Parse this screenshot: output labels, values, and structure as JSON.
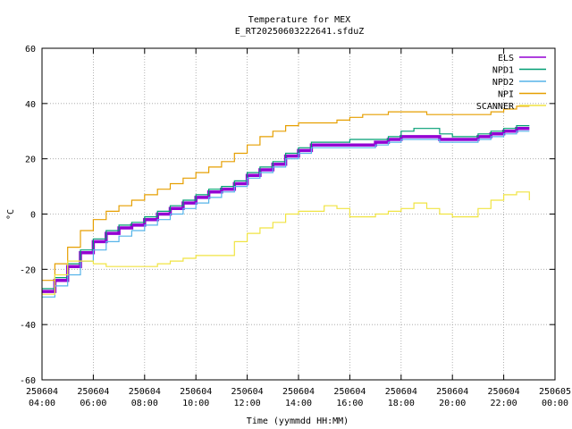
{
  "chart_data": {
    "type": "line",
    "title": "Temperature for MEX",
    "subtitle": "E_RT20250603222641.sfduZ",
    "xlabel": "Time (yymmdd HH:MM)",
    "ylabel": "°C",
    "ylim": [
      -60,
      60
    ],
    "yticks": [
      "60",
      "40",
      "20",
      "0",
      "-20",
      "-40",
      "-60"
    ],
    "xlim": [
      "250604 04:00",
      "250605 00:00"
    ],
    "xticks": [
      {
        "date": "250604",
        "time": "04:00"
      },
      {
        "date": "250604",
        "time": "06:00"
      },
      {
        "date": "250604",
        "time": "08:00"
      },
      {
        "date": "250604",
        "time": "10:00"
      },
      {
        "date": "250604",
        "time": "12:00"
      },
      {
        "date": "250604",
        "time": "14:00"
      },
      {
        "date": "250604",
        "time": "16:00"
      },
      {
        "date": "250604",
        "time": "18:00"
      },
      {
        "date": "250604",
        "time": "20:00"
      },
      {
        "date": "250604",
        "time": "22:00"
      },
      {
        "date": "250605",
        "time": "00:00"
      }
    ],
    "grid": true,
    "legend_position": "top-right",
    "series": [
      {
        "name": "ELS",
        "color": "#9400d3",
        "x": [
          "04:00",
          "04:30",
          "05:00",
          "05:30",
          "06:00",
          "06:30",
          "07:00",
          "07:30",
          "08:00",
          "08:30",
          "09:00",
          "09:30",
          "10:00",
          "10:30",
          "11:00",
          "11:30",
          "12:00",
          "12:30",
          "13:00",
          "13:30",
          "14:00",
          "14:30",
          "15:00",
          "15:30",
          "16:00",
          "16:30",
          "17:00",
          "17:30",
          "18:00",
          "18:30",
          "19:00",
          "19:30",
          "20:00",
          "20:30",
          "21:00",
          "21:30",
          "22:00",
          "22:30",
          "23:00"
        ],
        "values": [
          -28,
          -24,
          -19,
          -14,
          -10,
          -7,
          -5,
          -4,
          -2,
          0,
          2,
          4,
          6,
          8,
          9,
          11,
          14,
          16,
          18,
          21,
          23,
          25,
          25,
          25,
          25,
          25,
          26,
          27,
          28,
          28,
          28,
          27,
          27,
          27,
          28,
          29,
          30,
          31,
          31
        ]
      },
      {
        "name": "NPD1",
        "color": "#009e73",
        "x": [
          "04:00",
          "04:30",
          "05:00",
          "05:30",
          "06:00",
          "06:30",
          "07:00",
          "07:30",
          "08:00",
          "08:30",
          "09:00",
          "09:30",
          "10:00",
          "10:30",
          "11:00",
          "11:30",
          "12:00",
          "12:30",
          "13:00",
          "13:30",
          "14:00",
          "14:30",
          "15:00",
          "15:30",
          "16:00",
          "16:30",
          "17:00",
          "17:30",
          "18:00",
          "18:30",
          "19:00",
          "19:30",
          "20:00",
          "20:30",
          "21:00",
          "21:30",
          "22:00",
          "22:30",
          "23:00"
        ],
        "values": [
          -27,
          -23,
          -18,
          -13,
          -9,
          -6,
          -4,
          -3,
          -1,
          1,
          3,
          5,
          7,
          9,
          10,
          12,
          15,
          17,
          19,
          22,
          24,
          26,
          26,
          26,
          27,
          27,
          27,
          28,
          30,
          31,
          31,
          29,
          28,
          28,
          29,
          30,
          31,
          32,
          32
        ]
      },
      {
        "name": "NPD2",
        "color": "#56b4e9",
        "x": [
          "04:00",
          "04:30",
          "05:00",
          "05:30",
          "06:00",
          "06:30",
          "07:00",
          "07:30",
          "08:00",
          "08:30",
          "09:00",
          "09:30",
          "10:00",
          "10:30",
          "11:00",
          "11:30",
          "12:00",
          "12:30",
          "13:00",
          "13:30",
          "14:00",
          "14:30",
          "15:00",
          "15:30",
          "16:00",
          "16:30",
          "17:00",
          "17:30",
          "18:00",
          "18:30",
          "19:00",
          "19:30",
          "20:00",
          "20:30",
          "21:00",
          "21:30",
          "22:00",
          "22:30",
          "23:00"
        ],
        "values": [
          -30,
          -26,
          -22,
          -17,
          -13,
          -10,
          -8,
          -6,
          -4,
          -2,
          0,
          2,
          4,
          6,
          8,
          10,
          13,
          15,
          17,
          20,
          22,
          24,
          24,
          24,
          24,
          24,
          25,
          26,
          27,
          27,
          27,
          26,
          26,
          26,
          27,
          28,
          29,
          30,
          30
        ]
      },
      {
        "name": "NPI",
        "color": "#e69f00",
        "x": [
          "04:00",
          "04:30",
          "05:00",
          "05:30",
          "06:00",
          "06:30",
          "07:00",
          "07:30",
          "08:00",
          "08:30",
          "09:00",
          "09:30",
          "10:00",
          "10:30",
          "11:00",
          "11:30",
          "12:00",
          "12:30",
          "13:00",
          "13:30",
          "14:00",
          "14:30",
          "15:00",
          "15:30",
          "16:00",
          "16:30",
          "17:00",
          "17:30",
          "18:00",
          "18:30",
          "19:00",
          "19:30",
          "20:00",
          "20:30",
          "21:00",
          "21:30",
          "22:00",
          "22:30",
          "23:00"
        ],
        "values": [
          -24,
          -18,
          -12,
          -6,
          -2,
          1,
          3,
          5,
          7,
          9,
          11,
          13,
          15,
          17,
          19,
          22,
          25,
          28,
          30,
          32,
          33,
          33,
          33,
          34,
          35,
          36,
          36,
          37,
          37,
          37,
          36,
          36,
          36,
          36,
          36,
          37,
          38,
          39,
          39
        ]
      },
      {
        "name": "SCANNER",
        "color": "#f0e442",
        "x": [
          "04:00",
          "04:30",
          "05:00",
          "05:30",
          "06:00",
          "06:30",
          "07:00",
          "07:30",
          "08:00",
          "08:30",
          "09:00",
          "09:30",
          "10:00",
          "10:30",
          "11:00",
          "11:30",
          "12:00",
          "12:30",
          "13:00",
          "13:30",
          "14:00",
          "14:30",
          "15:00",
          "15:30",
          "16:00",
          "16:30",
          "17:00",
          "17:30",
          "18:00",
          "18:30",
          "19:00",
          "19:30",
          "20:00",
          "20:30",
          "21:00",
          "21:30",
          "22:00",
          "22:30",
          "23:00"
        ],
        "values": [
          -29,
          -22,
          -17,
          -17,
          -18,
          -19,
          -19,
          -19,
          -19,
          -18,
          -17,
          -16,
          -15,
          -15,
          -15,
          -10,
          -7,
          -5,
          -3,
          0,
          1,
          1,
          3,
          2,
          -1,
          -1,
          0,
          1,
          2,
          4,
          2,
          0,
          -1,
          -1,
          2,
          5,
          7,
          8,
          5
        ]
      }
    ]
  }
}
